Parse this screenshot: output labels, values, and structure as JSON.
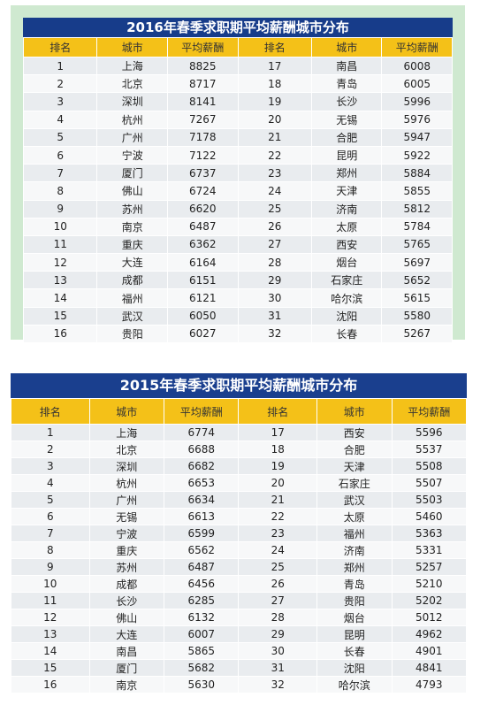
{
  "tables": [
    {
      "title": "2016年春季求职期平均薪酬城市分布",
      "headers": [
        "排名",
        "城市",
        "平均薪酬",
        "排名",
        "城市",
        "平均薪酬"
      ],
      "rows": [
        [
          "1",
          "上海",
          "8825",
          "17",
          "南昌",
          "6008"
        ],
        [
          "2",
          "北京",
          "8717",
          "18",
          "青岛",
          "6005"
        ],
        [
          "3",
          "深圳",
          "8141",
          "19",
          "长沙",
          "5996"
        ],
        [
          "4",
          "杭州",
          "7267",
          "20",
          "无锡",
          "5976"
        ],
        [
          "5",
          "广州",
          "7178",
          "21",
          "合肥",
          "5947"
        ],
        [
          "6",
          "宁波",
          "7122",
          "22",
          "昆明",
          "5922"
        ],
        [
          "7",
          "厦门",
          "6737",
          "23",
          "郑州",
          "5884"
        ],
        [
          "8",
          "佛山",
          "6724",
          "24",
          "天津",
          "5855"
        ],
        [
          "9",
          "苏州",
          "6620",
          "25",
          "济南",
          "5812"
        ],
        [
          "10",
          "南京",
          "6487",
          "26",
          "太原",
          "5784"
        ],
        [
          "11",
          "重庆",
          "6362",
          "27",
          "西安",
          "5765"
        ],
        [
          "12",
          "大连",
          "6164",
          "28",
          "烟台",
          "5697"
        ],
        [
          "13",
          "成都",
          "6151",
          "29",
          "石家庄",
          "5652"
        ],
        [
          "14",
          "福州",
          "6121",
          "30",
          "哈尔滨",
          "5615"
        ],
        [
          "15",
          "武汉",
          "6050",
          "31",
          "沈阳",
          "5580"
        ],
        [
          "16",
          "贵阳",
          "6027",
          "32",
          "长春",
          "5267"
        ]
      ]
    },
    {
      "title": "2015年春季求职期平均薪酬城市分布",
      "headers": [
        "排名",
        "城市",
        "平均薪酬",
        "排名",
        "城市",
        "平均薪酬"
      ],
      "rows": [
        [
          "1",
          "上海",
          "6774",
          "17",
          "西安",
          "5596"
        ],
        [
          "2",
          "北京",
          "6688",
          "18",
          "合肥",
          "5537"
        ],
        [
          "3",
          "深圳",
          "6682",
          "19",
          "天津",
          "5508"
        ],
        [
          "4",
          "杭州",
          "6653",
          "20",
          "石家庄",
          "5507"
        ],
        [
          "5",
          "广州",
          "6634",
          "21",
          "武汉",
          "5503"
        ],
        [
          "6",
          "无锡",
          "6613",
          "22",
          "太原",
          "5460"
        ],
        [
          "7",
          "宁波",
          "6599",
          "23",
          "福州",
          "5363"
        ],
        [
          "8",
          "重庆",
          "6562",
          "24",
          "济南",
          "5331"
        ],
        [
          "9",
          "苏州",
          "6487",
          "25",
          "郑州",
          "5257"
        ],
        [
          "10",
          "成都",
          "6456",
          "26",
          "青岛",
          "5210"
        ],
        [
          "11",
          "长沙",
          "6285",
          "27",
          "贵阳",
          "5202"
        ],
        [
          "12",
          "佛山",
          "6132",
          "28",
          "烟台",
          "5012"
        ],
        [
          "13",
          "大连",
          "6007",
          "29",
          "昆明",
          "4962"
        ],
        [
          "14",
          "南昌",
          "5865",
          "30",
          "长春",
          "4901"
        ],
        [
          "15",
          "厦门",
          "5682",
          "31",
          "沈阳",
          "4841"
        ],
        [
          "16",
          "南京",
          "5630",
          "32",
          "哈尔滨",
          "4793"
        ]
      ]
    }
  ]
}
